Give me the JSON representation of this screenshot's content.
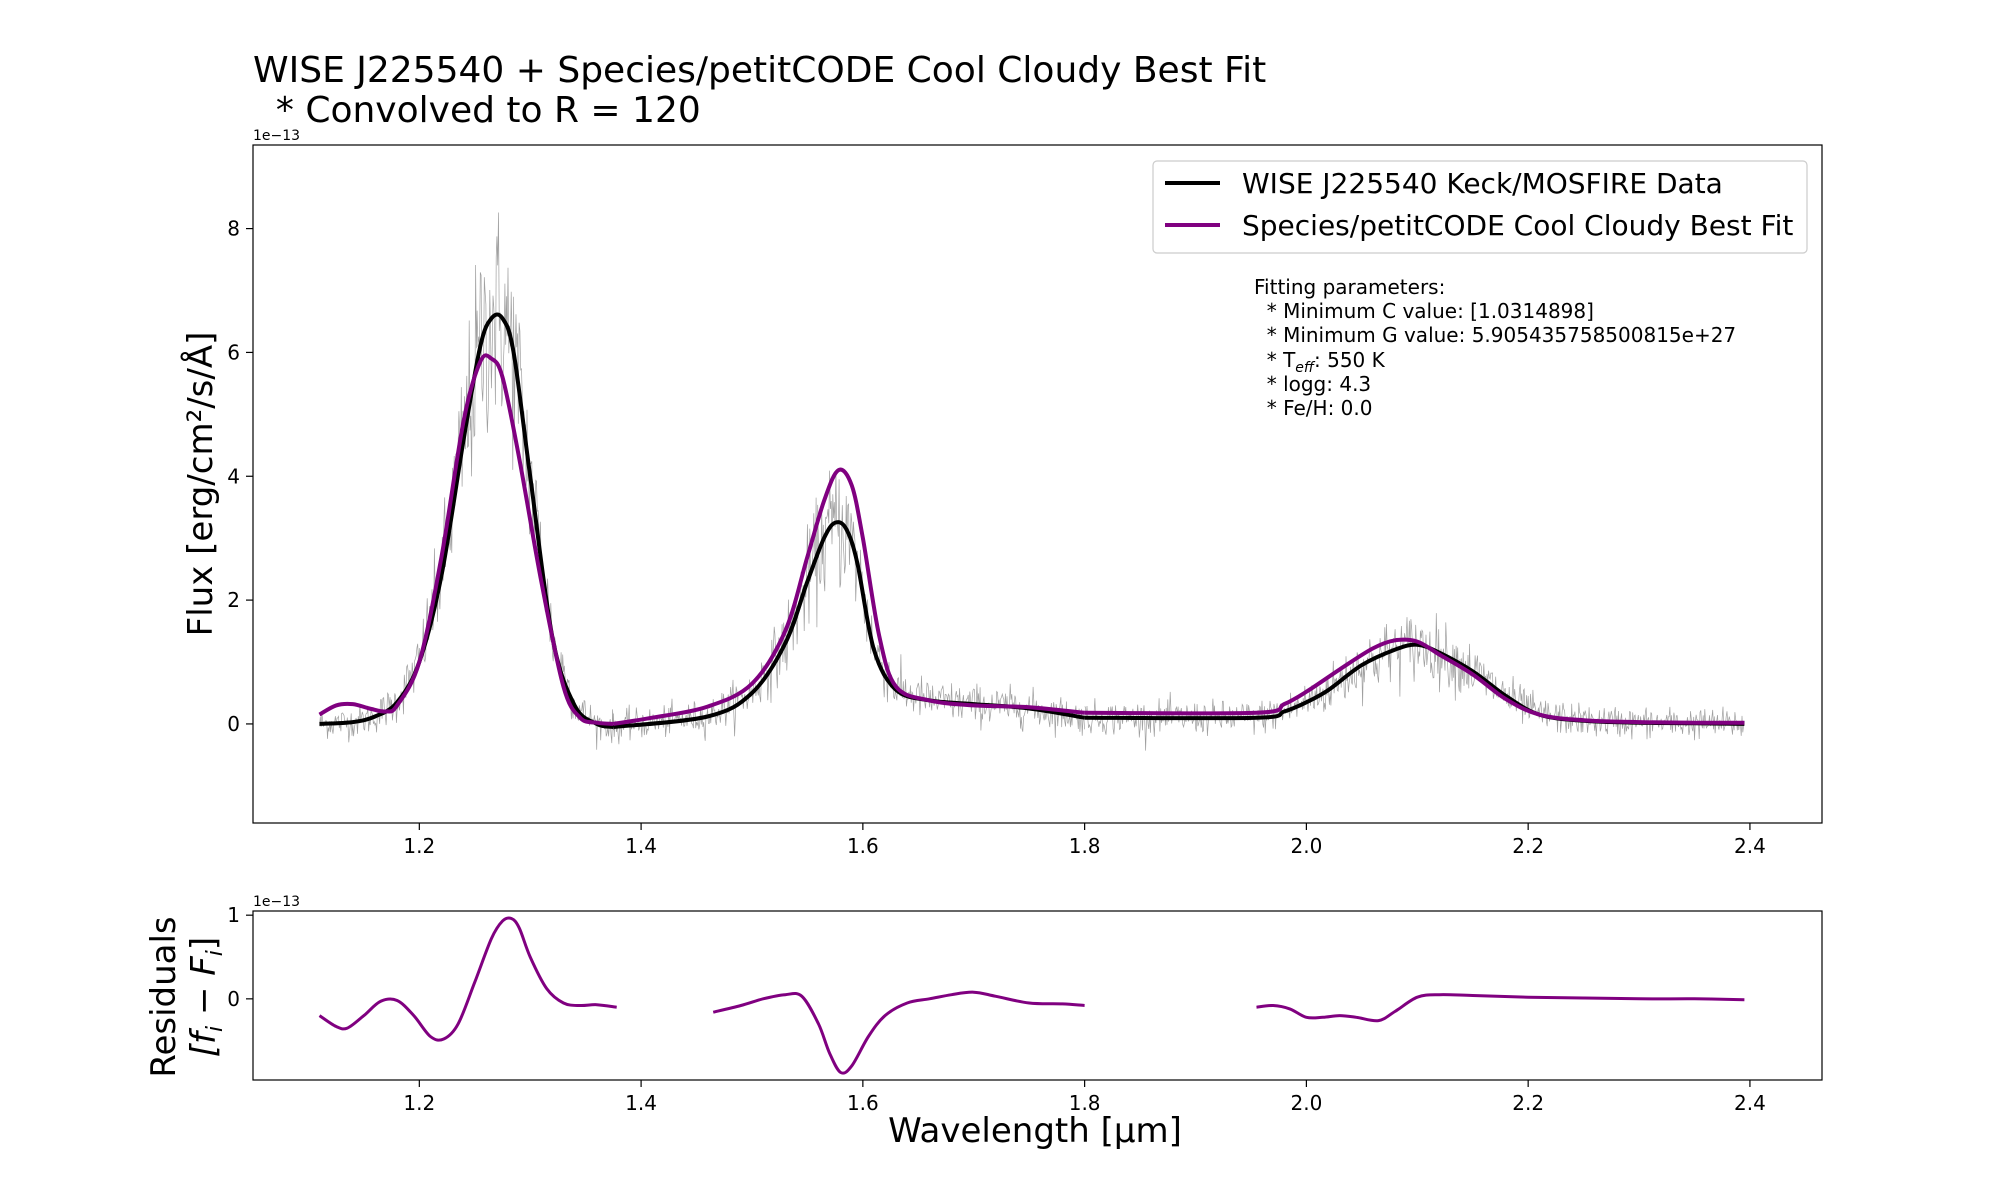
{
  "chart_data": [
    {
      "type": "line",
      "title": "WISE J225540 + Species/petitCODE Cool Cloudy Best Fit",
      "subtitle": "  * Convolved to R = 120",
      "xlabel": "",
      "ylabel": "Flux [erg/cm²/s/Å]",
      "y_offset_text": "1e−13",
      "xlim": [
        1.05,
        2.465
      ],
      "ylim": [
        -1.6,
        9.35
      ],
      "y_scale_factor": "1e-13",
      "xticks": [
        1.2,
        1.4,
        1.6,
        1.8,
        2.0,
        2.2,
        2.4
      ],
      "xtick_labels": [
        "1.2",
        "1.4",
        "1.6",
        "1.8",
        "2.0",
        "2.2",
        "2.4"
      ],
      "yticks": [
        0,
        2,
        4,
        6,
        8
      ],
      "ytick_labels": [
        "0",
        "2",
        "4",
        "6",
        "8"
      ],
      "grid": false,
      "legend_position": "top-right",
      "legend": [
        {
          "label": "WISE J225540 Keck/MOSFIRE Data",
          "color": "#000000"
        },
        {
          "label": "Species/petitCODE Cool Cloudy Best Fit",
          "color": "#800080"
        }
      ],
      "annotation": {
        "lines": [
          "Fitting parameters:",
          "  * Minimum C value: [1.0314898]",
          "  * Minimum G value: 5.905435758500815e+27",
          "  * T",
          "  * logg: 4.3",
          "  * Fe/H: 0.0"
        ],
        "teff_sub": "eff",
        "teff_value": ": 550 K"
      },
      "series": [
        {
          "name": "WISE J225540 Keck/MOSFIRE Data",
          "color": "#000000",
          "segments": [
            {
              "x": [
                1.11,
                1.14,
                1.16,
                1.18,
                1.2,
                1.22,
                1.24,
                1.255,
                1.265,
                1.275,
                1.285,
                1.3,
                1.32,
                1.34,
                1.36,
                1.375
              ],
              "y": [
                0.0,
                0.03,
                0.12,
                0.35,
                1.0,
                2.4,
                4.6,
                6.1,
                6.55,
                6.55,
                6.0,
                4.0,
                1.4,
                0.3,
                0.0,
                -0.05
              ]
            },
            {
              "x": [
                1.375,
                1.46,
                1.5,
                1.53,
                1.55,
                1.565,
                1.575,
                1.585,
                1.595,
                1.61,
                1.63,
                1.66,
                1.7,
                1.75,
                1.8
              ],
              "y": [
                -0.05,
                0.12,
                0.5,
                1.3,
                2.3,
                3.0,
                3.25,
                3.15,
                2.6,
                1.2,
                0.55,
                0.38,
                0.32,
                0.25,
                0.1
              ]
            },
            {
              "x": [
                1.8,
                1.955,
                1.98,
                2.0,
                2.02,
                2.05,
                2.08,
                2.1,
                2.12,
                2.15,
                2.18,
                2.21,
                2.25,
                2.3,
                2.35,
                2.395
              ],
              "y": [
                0.1,
                0.1,
                0.2,
                0.35,
                0.55,
                0.95,
                1.2,
                1.28,
                1.15,
                0.85,
                0.45,
                0.15,
                0.05,
                0.02,
                0.01,
                0.0
              ]
            }
          ]
        },
        {
          "name": "Species/petitCODE Cool Cloudy Best Fit",
          "color": "#800080",
          "segments": [
            {
              "x": [
                1.11,
                1.125,
                1.14,
                1.155,
                1.17,
                1.18,
                1.2,
                1.22,
                1.24,
                1.255,
                1.265,
                1.275,
                1.29,
                1.31,
                1.33,
                1.345,
                1.36,
                1.375
              ],
              "y": [
                0.15,
                0.3,
                0.32,
                0.25,
                0.2,
                0.3,
                1.0,
                2.7,
                4.9,
                5.85,
                5.9,
                5.6,
                4.3,
                2.3,
                0.6,
                0.1,
                0.02,
                0.0
              ]
            },
            {
              "x": [
                1.375,
                1.41,
                1.46,
                1.5,
                1.53,
                1.55,
                1.565,
                1.578,
                1.59,
                1.6,
                1.615,
                1.63,
                1.66,
                1.7,
                1.75,
                1.8
              ],
              "y": [
                0.0,
                0.1,
                0.28,
                0.65,
                1.5,
                2.7,
                3.6,
                4.1,
                3.85,
                3.0,
                1.4,
                0.6,
                0.38,
                0.3,
                0.27,
                0.18
              ]
            },
            {
              "x": [
                1.8,
                1.955,
                1.98,
                2.0,
                2.03,
                2.06,
                2.08,
                2.1,
                2.12,
                2.15,
                2.18,
                2.21,
                2.25,
                2.3,
                2.35,
                2.395
              ],
              "y": [
                0.18,
                0.18,
                0.32,
                0.52,
                0.88,
                1.22,
                1.35,
                1.33,
                1.12,
                0.8,
                0.4,
                0.15,
                0.06,
                0.03,
                0.02,
                0.02
              ]
            }
          ]
        }
      ]
    },
    {
      "type": "line",
      "title": "",
      "xlabel": "Wavelength [μm]",
      "ylabel_line1": "Residuals",
      "ylabel_line2": "[f",
      "ylabel_sub1": "i",
      "ylabel_mid": " − F",
      "ylabel_sub2": "i",
      "ylabel_end": "]",
      "y_offset_text": "1e−13",
      "xlim": [
        1.05,
        2.465
      ],
      "ylim": [
        -0.97,
        1.05
      ],
      "xticks": [
        1.2,
        1.4,
        1.6,
        1.8,
        2.0,
        2.2,
        2.4
      ],
      "xtick_labels": [
        "1.2",
        "1.4",
        "1.6",
        "1.8",
        "2.0",
        "2.2",
        "2.4"
      ],
      "yticks": [
        0,
        1
      ],
      "ytick_labels": [
        "0",
        "1"
      ],
      "grid": false,
      "series": [
        {
          "name": "",
          "color": "#800080",
          "segments": [
            {
              "x": [
                1.11,
                1.125,
                1.135,
                1.15,
                1.165,
                1.18,
                1.195,
                1.21,
                1.222,
                1.235,
                1.25,
                1.265,
                1.275,
                1.283,
                1.29,
                1.3,
                1.315,
                1.33,
                1.345,
                1.36,
                1.378
              ],
              "y": [
                -0.2,
                -0.33,
                -0.35,
                -0.2,
                -0.03,
                -0.02,
                -0.2,
                -0.45,
                -0.48,
                -0.3,
                0.2,
                0.72,
                0.93,
                0.96,
                0.85,
                0.5,
                0.12,
                -0.05,
                -0.08,
                -0.07,
                -0.1
              ]
            },
            {
              "x": [
                1.465,
                1.49,
                1.51,
                1.53,
                1.545,
                1.56,
                1.57,
                1.58,
                1.59,
                1.605,
                1.62,
                1.64,
                1.66,
                1.68,
                1.7,
                1.72,
                1.75,
                1.78,
                1.8
              ],
              "y": [
                -0.16,
                -0.08,
                0.0,
                0.05,
                0.03,
                -0.3,
                -0.65,
                -0.88,
                -0.8,
                -0.45,
                -0.2,
                -0.05,
                0.0,
                0.05,
                0.08,
                0.03,
                -0.05,
                -0.06,
                -0.08
              ]
            },
            {
              "x": [
                1.955,
                1.97,
                1.985,
                2.0,
                2.015,
                2.03,
                2.045,
                2.065,
                2.08,
                2.1,
                2.12,
                2.15,
                2.2,
                2.25,
                2.3,
                2.35,
                2.395
              ],
              "y": [
                -0.1,
                -0.08,
                -0.12,
                -0.22,
                -0.22,
                -0.2,
                -0.22,
                -0.26,
                -0.15,
                0.02,
                0.05,
                0.04,
                0.02,
                0.01,
                0.0,
                0.0,
                -0.01
              ]
            }
          ]
        }
      ]
    }
  ]
}
